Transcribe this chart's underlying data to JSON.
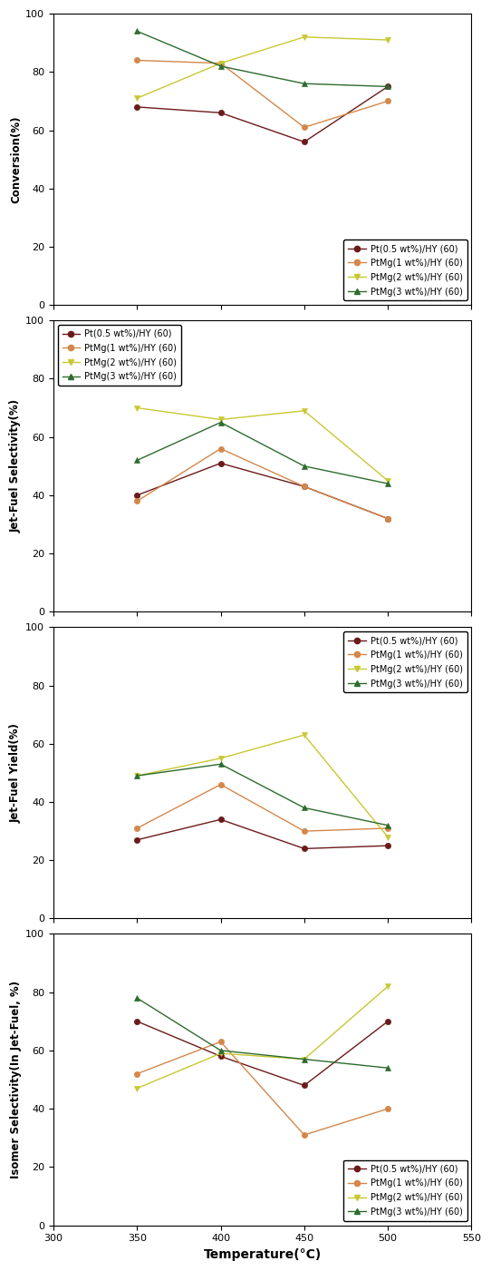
{
  "temperatures": [
    350,
    400,
    450,
    500
  ],
  "conversion": {
    "Pt05": [
      68,
      66,
      56,
      75
    ],
    "PtMg1": [
      84,
      83,
      61,
      70
    ],
    "PtMg2": [
      71,
      83,
      92,
      91
    ],
    "PtMg3": [
      94,
      82,
      76,
      75
    ]
  },
  "jet_fuel_selectivity": {
    "Pt05": [
      40,
      51,
      43,
      32
    ],
    "PtMg1": [
      38,
      56,
      43,
      32
    ],
    "PtMg2": [
      70,
      66,
      69,
      45
    ],
    "PtMg3": [
      52,
      65,
      50,
      44
    ]
  },
  "jet_fuel_yield": {
    "Pt05": [
      27,
      34,
      24,
      25
    ],
    "PtMg1": [
      31,
      46,
      30,
      31
    ],
    "PtMg2": [
      49,
      55,
      63,
      28
    ],
    "PtMg3": [
      49,
      53,
      38,
      32
    ]
  },
  "isomer_selectivity": {
    "Pt05": [
      70,
      58,
      48,
      70
    ],
    "PtMg1": [
      52,
      63,
      31,
      40
    ],
    "PtMg2": [
      47,
      59,
      57,
      82
    ],
    "PtMg3": [
      78,
      60,
      57,
      54
    ]
  },
  "colors": {
    "Pt05": "#6b1a1a",
    "PtMg1": "#d4874a",
    "PtMg2": "#c8c832",
    "PtMg3": "#2e6b2e"
  },
  "markers": {
    "Pt05": "o",
    "PtMg1": "o",
    "PtMg2": "v",
    "PtMg3": "^"
  },
  "labels": {
    "Pt05": "Pt(0.5 wt%)/HY (60)",
    "PtMg1": "PtMg(1 wt%)/HY (60)",
    "PtMg2": "PtMg(2 wt%)/HY (60)",
    "PtMg3": "PtMg(3 wt%)/HY (60)"
  },
  "ylabels": [
    "Conversion(%)",
    "Jet-Fuel Selectivity(%)",
    "Jet-Fuel Yield(%)",
    "Isomer Selectivity(In Jet-Fuel, %)"
  ],
  "xlabel": "Temperature(°C)",
  "xlim": [
    300,
    550
  ],
  "ylim": [
    0,
    100
  ],
  "legend_positions": [
    "lower right",
    "upper left",
    "upper right",
    "lower right"
  ]
}
